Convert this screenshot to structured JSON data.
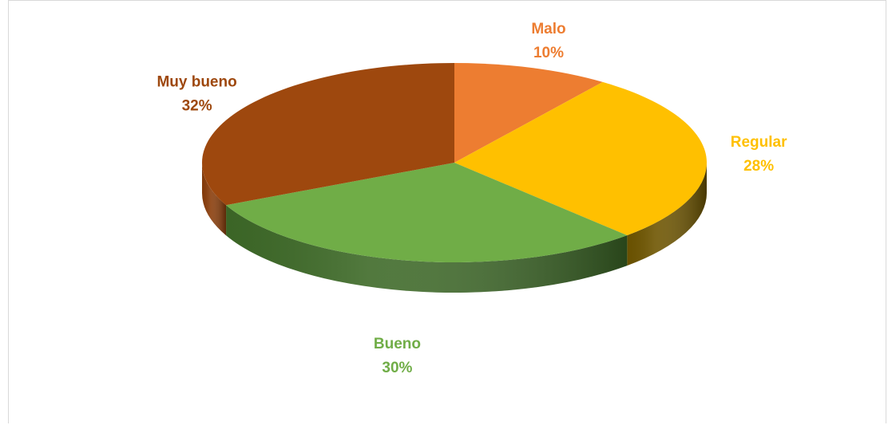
{
  "chart_data": {
    "type": "pie",
    "title": "",
    "start_at": "top",
    "direction": "clockwise",
    "legend": "none",
    "slices": [
      {
        "label": "Malo",
        "value": 10,
        "value_label": "10%",
        "color": "#ED7D31",
        "side_color": "#B45B1E"
      },
      {
        "label": "Regular",
        "value": 28,
        "value_label": "28%",
        "color": "#FFC000",
        "side_color": "#6E5500"
      },
      {
        "label": "Bueno",
        "value": 30,
        "value_label": "30%",
        "color": "#70AD47",
        "side_color": "#3E6A28"
      },
      {
        "label": "Muy bueno",
        "value": 32,
        "value_label": "32%",
        "color": "#9E480E",
        "side_color": "#8A3D0A"
      }
    ]
  }
}
